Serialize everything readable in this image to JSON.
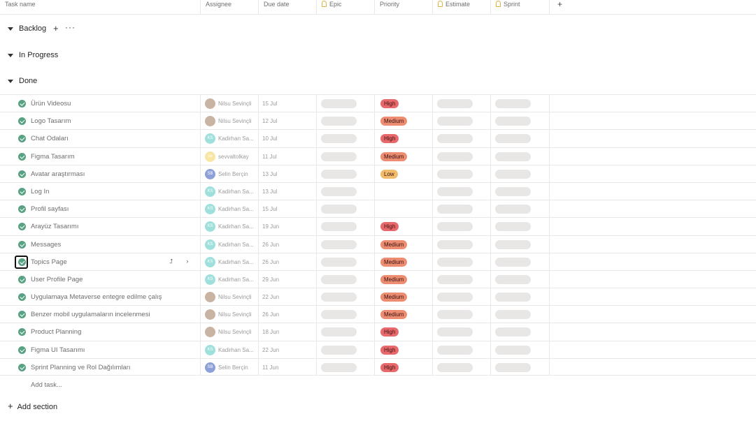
{
  "header": {
    "task_name": "Task name",
    "assignee": "Assignee",
    "due_date": "Due date",
    "epic": "Epic",
    "priority": "Priority",
    "estimate": "Estimate",
    "sprint": "Sprint",
    "add_column": "+"
  },
  "sections": {
    "backlog": "Backlog",
    "in_progress": "In Progress",
    "done": "Done",
    "add_icon": "+",
    "more_icon": "···"
  },
  "colors": {
    "check": "#58a182",
    "high": "#e8696b",
    "medium": "#ec8d71",
    "low": "#f1bd6c"
  },
  "tasks": [
    {
      "name": "Ürün Videosu",
      "assignee": "Nilsu Sevinçli",
      "initials": "",
      "avatar_color": "#c9b3a3",
      "due": "15 Jul",
      "priority": "High"
    },
    {
      "name": "Logo Tasarım",
      "assignee": "Nilsu Sevinçli",
      "initials": "",
      "avatar_color": "#c9b3a3",
      "due": "12 Jul",
      "priority": "Medium"
    },
    {
      "name": "Chat Odaları",
      "assignee": "Kadirhan Sa...",
      "initials": "KS",
      "avatar_color": "#9fe0dc",
      "due": "10 Jul",
      "priority": "High"
    },
    {
      "name": "Figma Tasarım",
      "assignee": "sevvaltolkay",
      "initials": "se",
      "avatar_color": "#f8e6a6",
      "due": "11 Jul",
      "priority": "Medium"
    },
    {
      "name": "Avatar araştırması",
      "assignee": "Selin Berçin",
      "initials": "SB",
      "avatar_color": "#8ea0d8",
      "due": "13 Jul",
      "priority": "Low"
    },
    {
      "name": "Log In",
      "assignee": "Kadirhan Sa...",
      "initials": "KS",
      "avatar_color": "#9fe0dc",
      "due": "13 Jul",
      "priority": ""
    },
    {
      "name": "Profil sayfası",
      "assignee": "Kadirhan Sa...",
      "initials": "KS",
      "avatar_color": "#9fe0dc",
      "due": "15 Jul",
      "priority": ""
    },
    {
      "name": "Arayüz Tasarımı",
      "assignee": "Kadirhan Sa...",
      "initials": "KS",
      "avatar_color": "#9fe0dc",
      "due": "19 Jun",
      "priority": "High"
    },
    {
      "name": "Messages",
      "assignee": "Kadirhan Sa...",
      "initials": "KS",
      "avatar_color": "#9fe0dc",
      "due": "26 Jun",
      "priority": "Medium"
    },
    {
      "name": "Topics Page",
      "assignee": "Kadirhan Sa...",
      "initials": "KS",
      "avatar_color": "#9fe0dc",
      "due": "26 Jun",
      "priority": "Medium",
      "focused": true
    },
    {
      "name": "User Profile Page",
      "assignee": "Kadirhan Sa...",
      "initials": "KS",
      "avatar_color": "#9fe0dc",
      "due": "29 Jun",
      "priority": "Medium"
    },
    {
      "name": "Uygulamaya Metaverse entegre edilme çalış",
      "assignee": "Nilsu Sevinçli",
      "initials": "",
      "avatar_color": "#c9b3a3",
      "due": "22 Jun",
      "priority": "Medium"
    },
    {
      "name": "Benzer mobil uygulamaların incelenmesi",
      "assignee": "Nilsu Sevinçli",
      "initials": "",
      "avatar_color": "#c9b3a3",
      "due": "26 Jun",
      "priority": "Medium"
    },
    {
      "name": "Product Planning",
      "assignee": "Nilsu Sevinçli",
      "initials": "",
      "avatar_color": "#c9b3a3",
      "due": "18 Jun",
      "priority": "High"
    },
    {
      "name": "Figma UI Tasarımı",
      "assignee": "Kadirhan Sa...",
      "initials": "KS",
      "avatar_color": "#9fe0dc",
      "due": "22 Jun",
      "priority": "High"
    },
    {
      "name": "Sprint Planning ve Rol Dağılımları",
      "assignee": "Selin Berçin",
      "initials": "SB",
      "avatar_color": "#8ea0d8",
      "due": "11 Jun",
      "priority": "High"
    }
  ],
  "row_actions": {
    "subtask_icon": "⮥",
    "details_icon": "›"
  },
  "footer": {
    "add_task": "Add task...",
    "add_section_icon": "+",
    "add_section": "Add section"
  }
}
